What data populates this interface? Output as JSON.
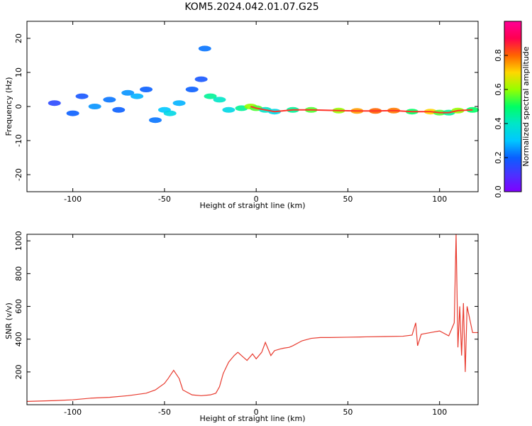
{
  "title": "KOM5.2024.042.01.07.G25",
  "colorbar": {
    "label": "Normalized spectral amplitude",
    "range": [
      0,
      1
    ],
    "ticks": [
      0.0,
      0.2,
      0.4,
      0.6,
      0.8
    ],
    "tick_labels": [
      "0.0",
      "0.2",
      "0.4",
      "0.6",
      "0.8"
    ],
    "colormap_stops": [
      "#8000ff",
      "#4b32ff",
      "#0a5fff",
      "#00c8ff",
      "#00e6c8",
      "#00ff64",
      "#96ff00",
      "#ffd700",
      "#ff6400",
      "#ff0050",
      "#ff0096"
    ]
  },
  "chart_data": [
    {
      "type": "heatmap",
      "title": "KOM5.2024.042.01.07.G25",
      "xlabel": "Height of straight line (km)",
      "ylabel": "Frequency (Hz)",
      "xlim": [
        -125,
        121
      ],
      "ylim": [
        -25,
        25
      ],
      "xticks": [
        -100,
        -50,
        0,
        50,
        100
      ],
      "xtick_labels": [
        "-100",
        "-50",
        "0",
        "50",
        "100"
      ],
      "yticks": [
        -20,
        -10,
        0,
        10,
        20
      ],
      "ytick_labels": [
        "-20",
        "-10",
        "0",
        "10",
        "20"
      ],
      "blobs": [
        {
          "x": -110,
          "y": 1,
          "a": 0.15
        },
        {
          "x": -100,
          "y": -2,
          "a": 0.2
        },
        {
          "x": -95,
          "y": 3,
          "a": 0.18
        },
        {
          "x": -88,
          "y": 0,
          "a": 0.25
        },
        {
          "x": -80,
          "y": 2,
          "a": 0.22
        },
        {
          "x": -75,
          "y": -1,
          "a": 0.2
        },
        {
          "x": -70,
          "y": 4,
          "a": 0.25
        },
        {
          "x": -65,
          "y": 3,
          "a": 0.28
        },
        {
          "x": -60,
          "y": 5,
          "a": 0.2
        },
        {
          "x": -55,
          "y": -4,
          "a": 0.22
        },
        {
          "x": -50,
          "y": -1,
          "a": 0.3
        },
        {
          "x": -47,
          "y": -2,
          "a": 0.35
        },
        {
          "x": -42,
          "y": 1,
          "a": 0.28
        },
        {
          "x": -35,
          "y": 5,
          "a": 0.2
        },
        {
          "x": -30,
          "y": 8,
          "a": 0.18
        },
        {
          "x": -28,
          "y": 17,
          "a": 0.22
        },
        {
          "x": -25,
          "y": 3,
          "a": 0.45
        },
        {
          "x": -20,
          "y": 2,
          "a": 0.4
        },
        {
          "x": -15,
          "y": -1,
          "a": 0.35
        },
        {
          "x": -8,
          "y": -0.5,
          "a": 0.45
        },
        {
          "x": -3,
          "y": 0,
          "a": 0.6
        },
        {
          "x": 0,
          "y": -0.5,
          "a": 0.55
        },
        {
          "x": 5,
          "y": -1,
          "a": 0.4
        },
        {
          "x": 10,
          "y": -1.5,
          "a": 0.35
        },
        {
          "x": 20,
          "y": -1,
          "a": 0.45
        },
        {
          "x": 30,
          "y": -1,
          "a": 0.55
        },
        {
          "x": 45,
          "y": -1.2,
          "a": 0.6
        },
        {
          "x": 55,
          "y": -1.3,
          "a": 0.75
        },
        {
          "x": 65,
          "y": -1.3,
          "a": 0.8
        },
        {
          "x": 75,
          "y": -1.2,
          "a": 0.78
        },
        {
          "x": 85,
          "y": -1.5,
          "a": 0.5
        },
        {
          "x": 95,
          "y": -1.5,
          "a": 0.7
        },
        {
          "x": 100,
          "y": -1.8,
          "a": 0.55
        },
        {
          "x": 105,
          "y": -1.8,
          "a": 0.45
        },
        {
          "x": 110,
          "y": -1.2,
          "a": 0.6
        },
        {
          "x": 118,
          "y": -1,
          "a": 0.5
        }
      ]
    },
    {
      "type": "line",
      "xlabel": "Height of straight line (km)",
      "ylabel": "SNR (v/v)",
      "xlim": [
        -125,
        121
      ],
      "ylim": [
        0,
        1040
      ],
      "xticks": [
        -100,
        -50,
        0,
        50,
        100
      ],
      "xtick_labels": [
        "-100",
        "-50",
        "0",
        "50",
        "100"
      ],
      "yticks": [
        200,
        400,
        600,
        800,
        1000
      ],
      "ytick_labels": [
        "200",
        "400",
        "600",
        "800",
        "1000"
      ],
      "color": "#e83a2e",
      "series": [
        {
          "x": [
            -125,
            -110,
            -100,
            -90,
            -80,
            -70,
            -60,
            -55,
            -50,
            -48,
            -45,
            -42,
            -40,
            -35,
            -30,
            -25,
            -22,
            -20,
            -18,
            -15,
            -12,
            -10,
            -8,
            -5,
            -2,
            0,
            3,
            5,
            8,
            10,
            13,
            15,
            18,
            20,
            25,
            30,
            35,
            40,
            50,
            60,
            70,
            80,
            85,
            87,
            88,
            90,
            95,
            100,
            105,
            108,
            109,
            110,
            111,
            112,
            113,
            114,
            115,
            118,
            121
          ],
          "y": [
            20,
            25,
            30,
            40,
            45,
            55,
            70,
            90,
            130,
            160,
            210,
            160,
            90,
            60,
            55,
            60,
            70,
            110,
            190,
            260,
            300,
            320,
            300,
            270,
            310,
            280,
            320,
            380,
            300,
            330,
            340,
            345,
            350,
            360,
            390,
            405,
            410,
            410,
            412,
            414,
            416,
            418,
            425,
            500,
            360,
            430,
            440,
            450,
            420,
            500,
            1040,
            350,
            600,
            300,
            620,
            200,
            600,
            440,
            440
          ]
        }
      ]
    }
  ]
}
